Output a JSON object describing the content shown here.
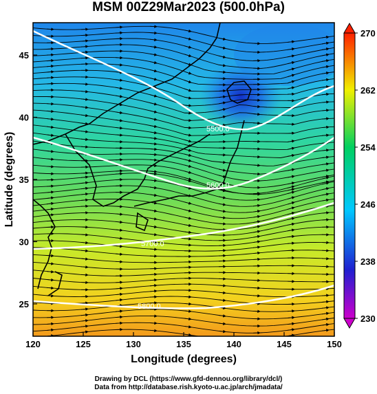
{
  "title": "MSM 00Z29Mar2023 (500.0hPa)",
  "map": {
    "xlabel": "Longitude (degrees)",
    "ylabel": "Latitude  (degrees)",
    "lon_range": [
      120,
      150
    ],
    "lat_range": [
      22.4,
      47.6
    ],
    "lon_ticks": [
      "120",
      "125",
      "130",
      "135",
      "140",
      "145",
      "150"
    ],
    "lat_ticks": [
      "25",
      "30",
      "35",
      "40",
      "45"
    ],
    "contour_labels": [
      "5500.0",
      "5600.0",
      "5700.0",
      "5800.0"
    ]
  },
  "colorbar": {
    "ticks": [
      "230",
      "238",
      "246",
      "254",
      "262",
      "270"
    ],
    "range": [
      230,
      270
    ],
    "colors": [
      "#cc00cc",
      "#2020d0",
      "#00c8ff",
      "#00d060",
      "#f0f000",
      "#ff2000"
    ]
  },
  "credits": {
    "line1": "Drawing by DCL (https://www.gfd-dennou.org/library/dcl/)",
    "line2": "Data from http://database.rish.kyoto-u.ac.jp/arch/jmadata/"
  }
}
